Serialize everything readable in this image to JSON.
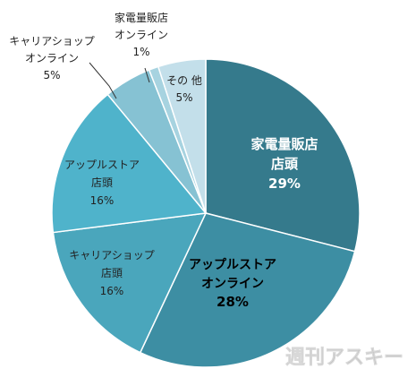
{
  "chart_data": {
    "type": "pie",
    "title": "",
    "start_angle_deg": 0,
    "direction": "clockwise",
    "slices": [
      {
        "label_lines": [
          "家電量販店",
          "店頭"
        ],
        "value": 29,
        "value_label": "29%",
        "color": "#357a8c",
        "label_color": "#ffffff",
        "label_style": "bold"
      },
      {
        "label_lines": [
          "アップルストア",
          "オンライン"
        ],
        "value": 28,
        "value_label": "28%",
        "color": "#3d8ea3",
        "label_color": "#000000",
        "label_style": "bold"
      },
      {
        "label_lines": [
          "キャリアショップ",
          "店頭"
        ],
        "value": 16,
        "value_label": "16%",
        "color": "#4aa6bc",
        "label_color": "#222222",
        "label_style": "normal"
      },
      {
        "label_lines": [
          "アップルストア",
          "店頭"
        ],
        "value": 16,
        "value_label": "16%",
        "color": "#4fb3cb",
        "label_color": "#222222",
        "label_style": "normal"
      },
      {
        "label_lines": [
          "キャリアショップ",
          "オンライン"
        ],
        "value": 5,
        "value_label": "5%",
        "color": "#86c2d3",
        "label_color": "#222222",
        "label_style": "normal",
        "external": true
      },
      {
        "label_lines": [
          "家電量販店",
          "オンライン"
        ],
        "value": 1,
        "value_label": "1%",
        "color": "#a7d3e0",
        "label_color": "#222222",
        "label_style": "normal",
        "external": true
      },
      {
        "label_lines": [
          "その 他"
        ],
        "value": 5,
        "value_label": "5%",
        "color": "#c3dfea",
        "label_color": "#222222",
        "label_style": "normal"
      }
    ],
    "legend": "none"
  },
  "watermark": {
    "text": "週刊アスキー",
    "color": "#b8b8b8"
  }
}
